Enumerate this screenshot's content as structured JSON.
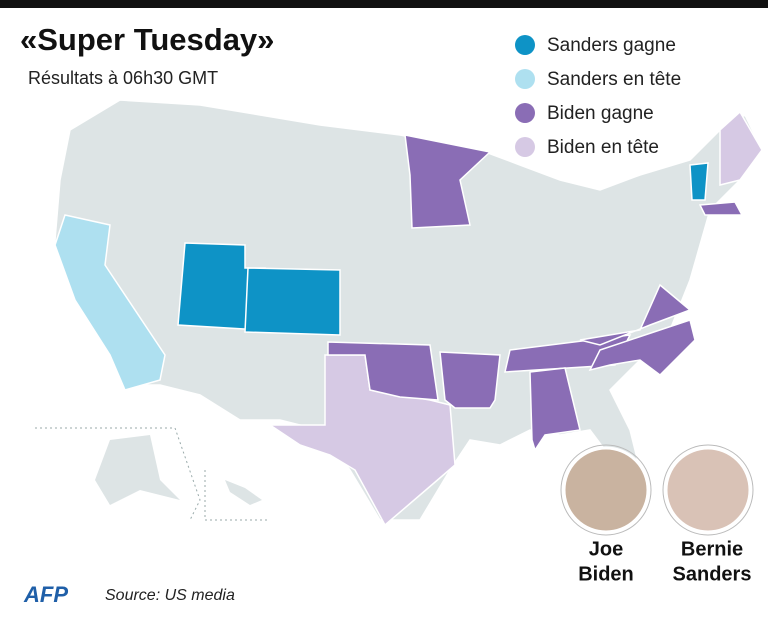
{
  "title": "«Super Tuesday»",
  "subtitle": "Résultats à 06h30 GMT",
  "legend": [
    {
      "label": "Sanders gagne",
      "color": "#0e93c6"
    },
    {
      "label": "Sanders en tête",
      "color": "#aee0f0"
    },
    {
      "label": "Biden gagne",
      "color": "#8a6db5"
    },
    {
      "label": "Biden en tête",
      "color": "#d6c9e4"
    }
  ],
  "candidates": [
    {
      "first": "Joe",
      "last": "Biden"
    },
    {
      "first": "Bernie",
      "last": "Sanders"
    }
  ],
  "logo": "AFP",
  "source": "Source: US media"
}
